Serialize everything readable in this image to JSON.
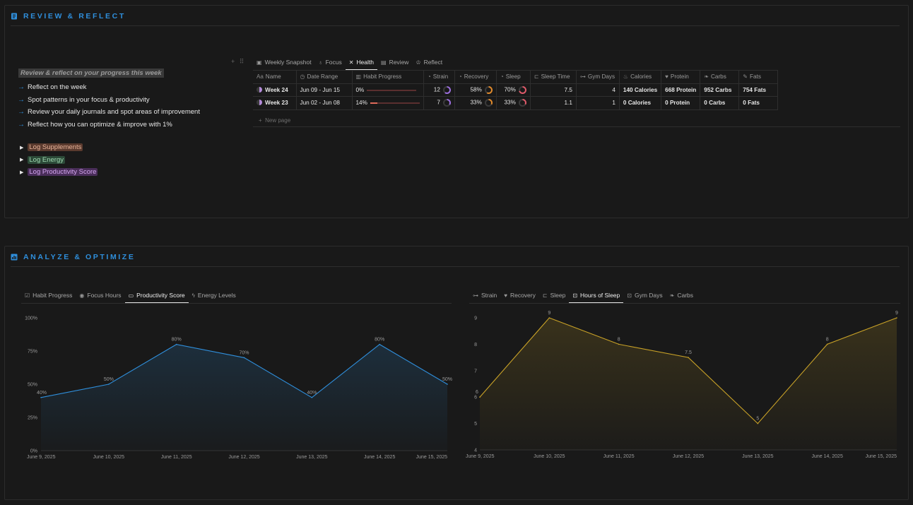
{
  "review": {
    "title": "REVIEW & REFLECT",
    "lead": "Review & reflect on your progress this week",
    "bullets": [
      "Reflect on the week",
      "Spot patterns in your focus & productivity",
      "Review your daily journals and spot areas of improvement",
      "Reflect how you can optimize & improve with 1%"
    ],
    "toggles": [
      "Log Supplements",
      "Log Energy",
      "Log Productivity Score"
    ]
  },
  "db": {
    "tabs": [
      {
        "label": "Weekly Snapshot",
        "icon": "snapshot-icon"
      },
      {
        "label": "Focus",
        "icon": "focus-icon"
      },
      {
        "label": "Health",
        "icon": "health-icon"
      },
      {
        "label": "Review",
        "icon": "review-icon"
      },
      {
        "label": "Reflect",
        "icon": "reflect-icon"
      }
    ],
    "active_tab": "Health",
    "columns": [
      "Name",
      "Date Range",
      "Habit Progress",
      "Strain",
      "Recovery",
      "Sleep",
      "Sleep Time",
      "Gym Days",
      "Calories",
      "Protein",
      "Carbs",
      "Fats"
    ],
    "rows": [
      {
        "name": "Week 24",
        "date": "Jun 09 - Jun 15",
        "habit": "0%",
        "habit_value": 0,
        "strain": "12",
        "strain_value": 0.6,
        "recovery": "58%",
        "recovery_value": 0.58,
        "sleep": "70%",
        "sleep_value": 0.7,
        "sleep_time": "7.5",
        "gym": "4",
        "calories": "140 Calories",
        "protein": "668 Protein",
        "carbs": "952 Carbs",
        "fats": "754 Fats"
      },
      {
        "name": "Week 23",
        "date": "Jun 02 - Jun 08",
        "habit": "14%",
        "habit_value": 0.14,
        "strain": "7",
        "strain_value": 0.35,
        "recovery": "33%",
        "recovery_value": 0.33,
        "sleep": "33%",
        "sleep_value": 0.33,
        "sleep_time": "1.1",
        "gym": "1",
        "calories": "0 Calories",
        "protein": "0 Protein",
        "carbs": "0 Carbs",
        "fats": "0 Fats"
      }
    ],
    "new_page": "New page"
  },
  "analyze": {
    "title": "ANALYZE & OPTIMIZE",
    "left_tabs": [
      "Habit Progress",
      "Focus Hours",
      "Productivity Score",
      "Energy Levels"
    ],
    "left_active": "Productivity Score",
    "right_tabs": [
      "Strain",
      "Recovery",
      "Sleep",
      "Hours of Sleep",
      "Gym Days",
      "Carbs"
    ],
    "right_active": "Hours of Sleep"
  },
  "colors": {
    "accent": "#2f8fdc",
    "line_blue": "#2f8fdc",
    "line_gold": "#c9a227"
  },
  "chart_data": [
    {
      "type": "area",
      "categories": [
        "June 9, 2025",
        "June 10, 2025",
        "June 11, 2025",
        "June 12, 2025",
        "June 13, 2025",
        "June 14, 2025",
        "June 15, 2025"
      ],
      "values": [
        40,
        50,
        80,
        70,
        40,
        80,
        50
      ],
      "data_labels": [
        "40%",
        "50%",
        "80%",
        "70%",
        "40%",
        "80%",
        "50%"
      ],
      "yticks": [
        "0%",
        "25%",
        "50%",
        "75%",
        "100%"
      ],
      "ylim": [
        0,
        100
      ],
      "grid": false,
      "color": "#2f8fdc"
    },
    {
      "type": "area",
      "categories": [
        "June 9, 2025",
        "June 10, 2025",
        "June 11, 2025",
        "June 12, 2025",
        "June 13, 2025",
        "June 14, 2025",
        "June 15, 2025"
      ],
      "values": [
        6,
        9,
        8,
        7.5,
        5,
        8,
        9
      ],
      "data_labels": [
        "6",
        "9",
        "8",
        "7.5",
        "5",
        "8",
        "9"
      ],
      "yticks": [
        "4",
        "5",
        "6",
        "7",
        "8",
        "9"
      ],
      "ylim": [
        4,
        9
      ],
      "grid": false,
      "color": "#c9a227"
    }
  ]
}
